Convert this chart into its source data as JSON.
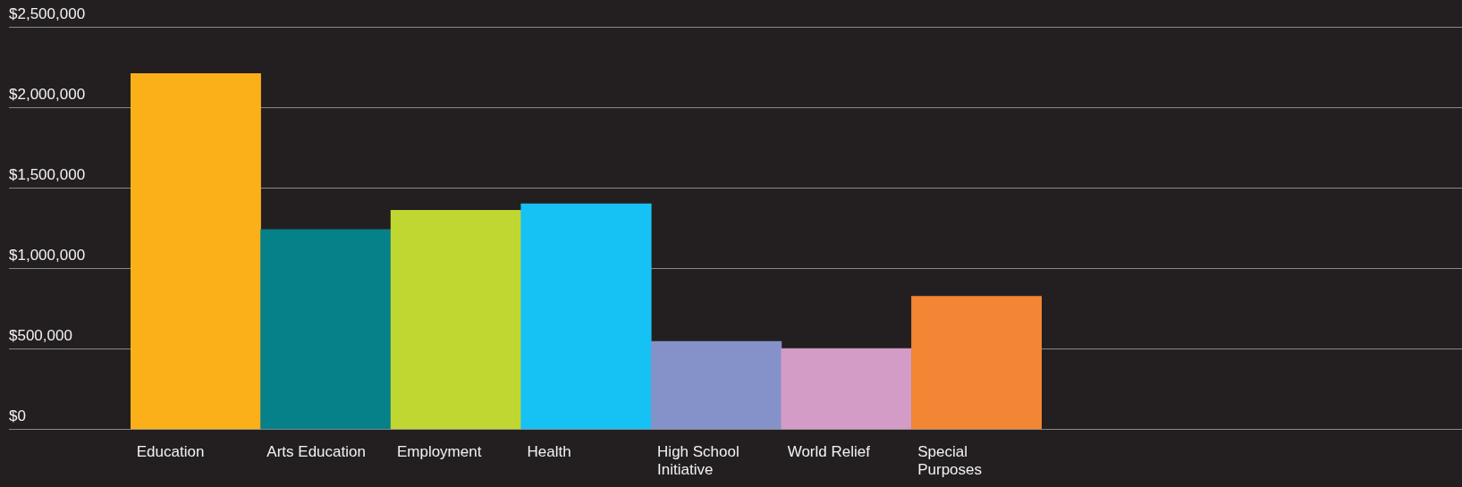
{
  "chart_data": {
    "type": "bar",
    "categories": [
      "Education",
      "Arts Education",
      "Employment",
      "Health",
      "High School Initiative",
      "World Relief",
      "Special Purposes"
    ],
    "values": [
      2210000,
      1240000,
      1360000,
      1400000,
      545000,
      500000,
      825000
    ],
    "colors": [
      "#fbb01a",
      "#078189",
      "#bfd730",
      "#16c1f3",
      "#8592c9",
      "#d39cc6",
      "#f28634"
    ],
    "ylim": [
      0,
      2500000
    ],
    "yticks": [
      {
        "value": 0,
        "label": "$0"
      },
      {
        "value": 500000,
        "label": "$500,000"
      },
      {
        "value": 1000000,
        "label": "$1,000,000"
      },
      {
        "value": 1500000,
        "label": "$1,500,000"
      },
      {
        "value": 2000000,
        "label": "$2,000,000"
      },
      {
        "value": 2500000,
        "label": "$2,500,000"
      }
    ],
    "grid": "y",
    "legend": false
  }
}
